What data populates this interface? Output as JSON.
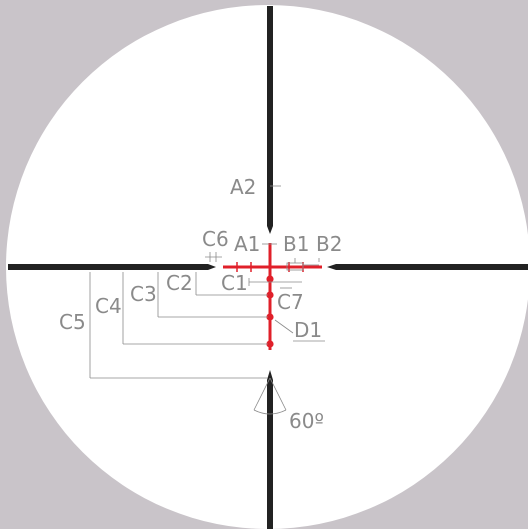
{
  "diagram": {
    "background_color": "#c9c4c9",
    "lens_color": "#ffffff",
    "post_color": "#222222",
    "reticle_color": "#e0202a",
    "dimension_color": "#8a8a8a",
    "labels": {
      "a1": "A1",
      "a2": "A2",
      "b1": "B1",
      "b2": "B2",
      "c1": "C1",
      "c2": "C2",
      "c3": "C3",
      "c4": "C4",
      "c5": "C5",
      "c6": "C6",
      "c7": "C7",
      "d1": "D1",
      "angle": "60º"
    }
  }
}
